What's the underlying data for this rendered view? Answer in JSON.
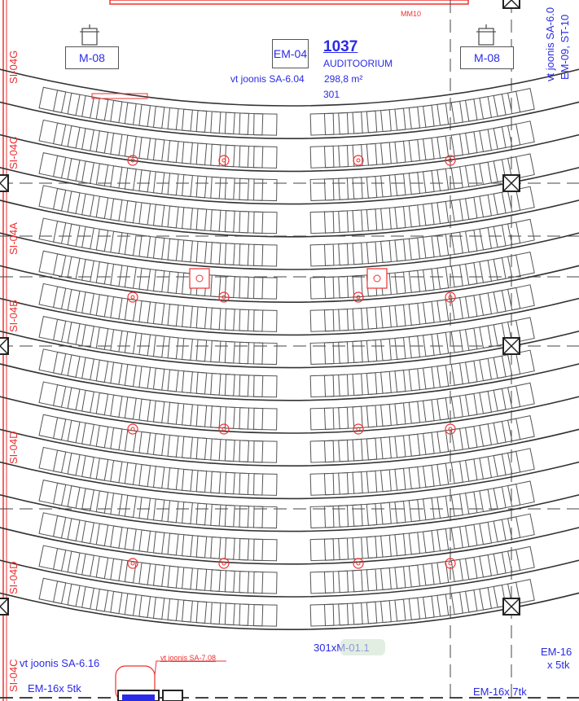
{
  "room": {
    "number": "1037",
    "name": "AUDITOORIUM",
    "area": "298,8 m²",
    "seats": "301",
    "ref": "vt joonis SA-6.04"
  },
  "top_label": "MM10",
  "equipment": {
    "left": "M-08",
    "right": "M-08",
    "center": "EM-04"
  },
  "right_vertical": [
    "vt joonis SA-6.0",
    "EM-09, ST-10"
  ],
  "left_labels": [
    "SI-04G",
    "SI-04C",
    "SI-04A",
    "SI-04B",
    "SI-04D",
    "SI-04D",
    "SI-04C"
  ],
  "bottom": {
    "seat_ref": "301xM-01.1",
    "ref_left": "vt joonis SA-6.16",
    "ref_red": "vt joonis SA-7.08",
    "em_left": "EM-16x 5tk",
    "em_right": "EM-16x 7tk",
    "em_side_1": "EM-16",
    "em_side_2": "x 5tk"
  },
  "colors": {
    "line": "#333333",
    "red": "#f03030",
    "blue": "#2a2ae8",
    "highlight": "#cfe3cf"
  }
}
